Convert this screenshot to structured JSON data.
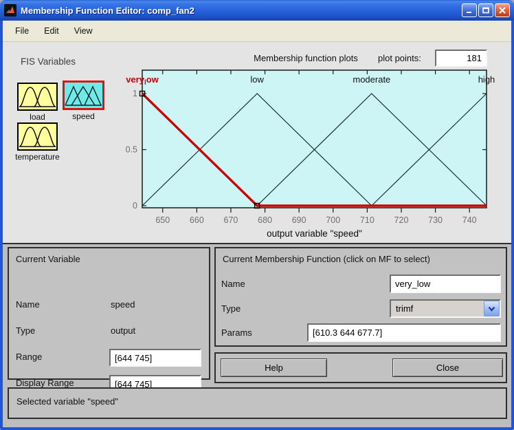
{
  "window": {
    "title": "Membership Function Editor: comp_fan2"
  },
  "menu": {
    "items": [
      "File",
      "Edit",
      "View"
    ]
  },
  "fis": {
    "title": "FIS Variables",
    "variables": [
      {
        "label": "load",
        "icon": "bell",
        "selected": false
      },
      {
        "label": "speed",
        "icon": "tri",
        "selected": true
      },
      {
        "label": "temperature",
        "icon": "bell",
        "selected": false
      }
    ]
  },
  "plot_header": {
    "title": "Membership function plots",
    "plot_points_label": "plot points:",
    "plot_points_value": "181"
  },
  "chart_data": {
    "type": "line",
    "title": "Membership function plots",
    "xlabel": "output variable \"speed\"",
    "xlim": [
      644,
      745
    ],
    "ylim": [
      0,
      1
    ],
    "x_ticks": [
      650,
      660,
      670,
      680,
      690,
      700,
      710,
      720,
      730,
      740
    ],
    "y_ticks": [
      0,
      0.5,
      1
    ],
    "plot_bg": "#cdf5f5",
    "selected_color": "#cc0000",
    "line_color": "#16302f",
    "series": [
      {
        "name": "low",
        "mf_type": "trimf",
        "params": [
          644,
          677.7,
          711.3
        ],
        "selected": false,
        "points": [
          [
            644,
            0
          ],
          [
            677.7,
            1
          ],
          [
            711.3,
            0
          ]
        ]
      },
      {
        "name": "moderate",
        "mf_type": "trimf",
        "params": [
          677.7,
          711.3,
          745
        ],
        "selected": false,
        "points": [
          [
            677.7,
            0
          ],
          [
            711.3,
            1
          ],
          [
            745,
            0
          ]
        ]
      },
      {
        "name": "high",
        "mf_type": "trimf",
        "params": [
          711.3,
          745,
          778.7
        ],
        "selected": false,
        "points": [
          [
            711.3,
            0
          ],
          [
            745,
            1
          ]
        ]
      },
      {
        "name": "very_low",
        "mf_type": "trimf",
        "params": [
          610.3,
          644,
          677.7
        ],
        "selected": true,
        "points": [
          [
            644,
            1
          ],
          [
            677.7,
            0
          ],
          [
            745,
            0
          ]
        ]
      }
    ],
    "markers": [
      [
        644,
        1
      ],
      [
        677.7,
        0
      ]
    ]
  },
  "current_variable": {
    "title": "Current Variable",
    "fields": [
      {
        "label": "Name",
        "value": "speed"
      },
      {
        "label": "Type",
        "value": "output"
      },
      {
        "label": "Range",
        "value": "[644 745]"
      },
      {
        "label": "Display Range",
        "value": "[644 745]"
      }
    ]
  },
  "current_mf": {
    "title": "Current Membership Function (click on MF to select)",
    "name_label": "Name",
    "name_value": "very_low",
    "type_label": "Type",
    "type_value": "trimf",
    "params_label": "Params",
    "params_value": "[610.3 644 677.7]"
  },
  "buttons": {
    "help": "Help",
    "close": "Close"
  },
  "status": "Selected variable \"speed\""
}
